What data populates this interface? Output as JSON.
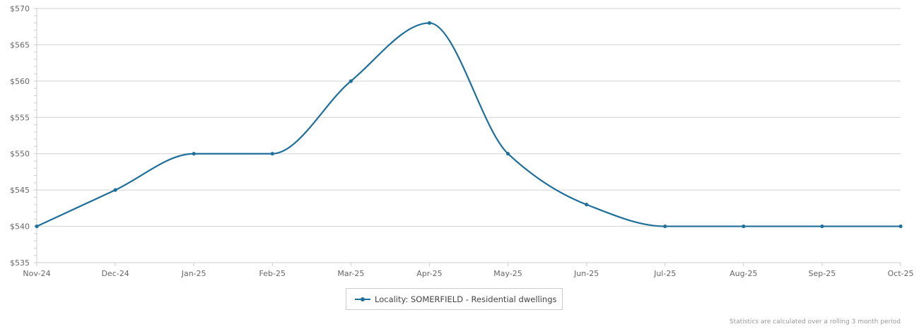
{
  "chart_data": {
    "type": "line",
    "categories": [
      "Nov-24",
      "Dec-24",
      "Jan-25",
      "Feb-25",
      "Mar-25",
      "Apr-25",
      "May-25",
      "Jun-25",
      "Jul-25",
      "Aug-25",
      "Sep-25",
      "Oct-25"
    ],
    "series": [
      {
        "name": "Locality: SOMERFIELD - Residential dwellings",
        "values": [
          540,
          545,
          550,
          550,
          560,
          568,
          550,
          543,
          540,
          540,
          540,
          540
        ]
      }
    ],
    "ylim": [
      535,
      570
    ],
    "yticks": [
      "$535",
      "$540",
      "$545",
      "$550",
      "$555",
      "$560",
      "$565",
      "$570"
    ],
    "ytick_values": [
      535,
      540,
      545,
      550,
      555,
      560,
      565,
      570
    ],
    "grid": true,
    "legend_position": "bottom-center",
    "line_color": "#1f6f9b",
    "grid_color": "#d0d0d0"
  },
  "legend": {
    "label": "Locality: SOMERFIELD - Residential dwellings"
  },
  "footnote": "Statistics are calculated over a rolling 3 month period"
}
